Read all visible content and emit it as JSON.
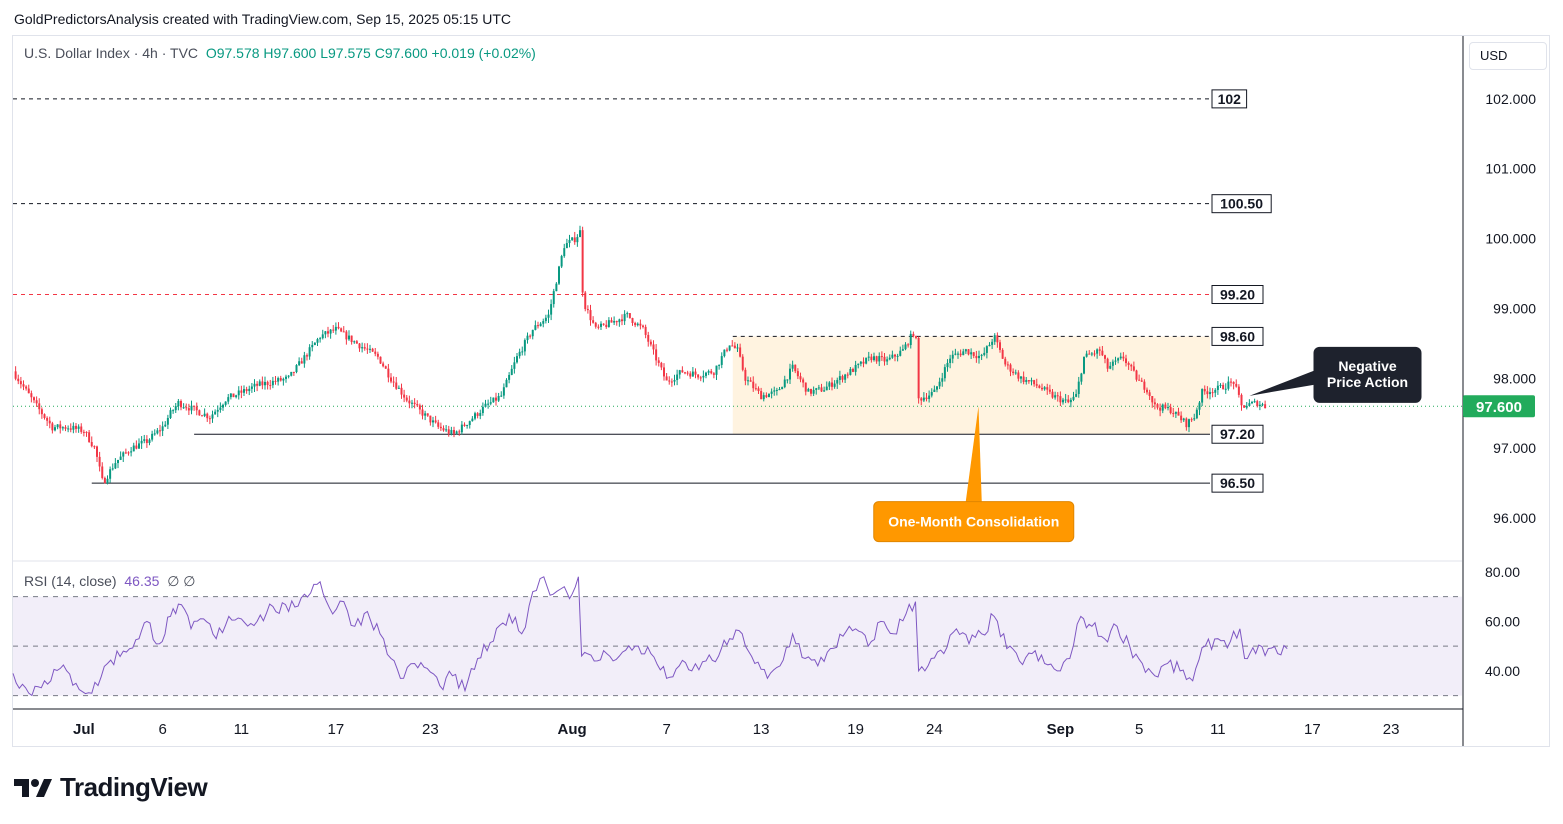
{
  "attribution": "GoldPredictorsAnalysis created with TradingView.com, Sep 15, 2025 05:15 UTC",
  "symbol": {
    "name": "U.S. Dollar Index · 4h · TVC",
    "ohlc": "O97.578  H97.600  L97.575  C97.600  +0.019 (+0.02%)"
  },
  "currency": "USD",
  "brand": "TradingView",
  "colors": {
    "up": "#089981",
    "down": "#f23645",
    "rsi": "#7e57c2",
    "last_price": "#22ab5c",
    "callout_orange": "#ff9800",
    "callout_dark": "#1e222d"
  },
  "chart_data": [
    {
      "type": "candlestick",
      "timeframe": "4h",
      "ylim": [
        95.4,
        102.9
      ],
      "price_axis_ticks": [
        "102.000",
        "101.000",
        "100.000",
        "99.000",
        "98.000",
        "97.000",
        "96.000"
      ],
      "price_axis_values": [
        102,
        101,
        100,
        99,
        98,
        97,
        96
      ],
      "time_axis_ticks": [
        "Jul",
        "6",
        "11",
        "17",
        "23",
        "Aug",
        "7",
        "13",
        "19",
        "24",
        "Sep",
        "5",
        "11",
        "17",
        "23"
      ],
      "time_axis_days": [
        0,
        5,
        10,
        16,
        22,
        31,
        37,
        43,
        49,
        54,
        62,
        67,
        72,
        78,
        83
      ],
      "x_range_days": [
        -4.5,
        87.5
      ],
      "last_price": {
        "value": 97.6,
        "label": "97.600"
      },
      "close_path": [
        {
          "day": -4.5,
          "close": 98.1
        },
        {
          "day": -3.0,
          "close": 97.6
        },
        {
          "day": -2.0,
          "close": 97.3
        },
        {
          "day": -1.0,
          "close": 97.3
        },
        {
          "day": 0.0,
          "close": 97.25
        },
        {
          "day": 0.7,
          "close": 97.0
        },
        {
          "day": 1.2,
          "close": 96.5
        },
        {
          "day": 2.0,
          "close": 96.8
        },
        {
          "day": 3.0,
          "close": 97.0
        },
        {
          "day": 4.0,
          "close": 97.1
        },
        {
          "day": 5.0,
          "close": 97.3
        },
        {
          "day": 5.5,
          "close": 97.5
        },
        {
          "day": 6.0,
          "close": 97.65
        },
        {
          "day": 7.0,
          "close": 97.55
        },
        {
          "day": 8.0,
          "close": 97.45
        },
        {
          "day": 9.0,
          "close": 97.7
        },
        {
          "day": 10.0,
          "close": 97.8
        },
        {
          "day": 11.0,
          "close": 97.9
        },
        {
          "day": 12.0,
          "close": 97.95
        },
        {
          "day": 13.0,
          "close": 98.0
        },
        {
          "day": 14.0,
          "close": 98.3
        },
        {
          "day": 15.0,
          "close": 98.6
        },
        {
          "day": 16.0,
          "close": 98.7
        },
        {
          "day": 17.0,
          "close": 98.55
        },
        {
          "day": 18.0,
          "close": 98.4
        },
        {
          "day": 18.7,
          "close": 98.3
        },
        {
          "day": 19.5,
          "close": 98.0
        },
        {
          "day": 20.5,
          "close": 97.7
        },
        {
          "day": 21.5,
          "close": 97.5
        },
        {
          "day": 22.5,
          "close": 97.3
        },
        {
          "day": 23.5,
          "close": 97.2
        },
        {
          "day": 24.5,
          "close": 97.4
        },
        {
          "day": 25.5,
          "close": 97.6
        },
        {
          "day": 26.5,
          "close": 97.75
        },
        {
          "day": 27.5,
          "close": 98.3
        },
        {
          "day": 28.5,
          "close": 98.7
        },
        {
          "day": 29.5,
          "close": 98.9
        },
        {
          "day": 30.0,
          "close": 99.4
        },
        {
          "day": 30.5,
          "close": 99.9
        },
        {
          "day": 31.2,
          "close": 100.0
        },
        {
          "day": 31.5,
          "close": 100.1
        },
        {
          "day": 31.7,
          "close": 99.1
        },
        {
          "day": 32.5,
          "close": 98.7
        },
        {
          "day": 33.5,
          "close": 98.8
        },
        {
          "day": 34.5,
          "close": 98.9
        },
        {
          "day": 35.5,
          "close": 98.7
        },
        {
          "day": 36.5,
          "close": 98.2
        },
        {
          "day": 37.0,
          "close": 97.95
        },
        {
          "day": 38.0,
          "close": 98.1
        },
        {
          "day": 39.0,
          "close": 98.05
        },
        {
          "day": 40.0,
          "close": 98.1
        },
        {
          "day": 41.0,
          "close": 98.5
        },
        {
          "day": 41.5,
          "close": 98.4
        },
        {
          "day": 42.0,
          "close": 98.0
        },
        {
          "day": 43.0,
          "close": 97.75
        },
        {
          "day": 44.0,
          "close": 97.8
        },
        {
          "day": 45.0,
          "close": 98.15
        },
        {
          "day": 46.0,
          "close": 97.8
        },
        {
          "day": 47.0,
          "close": 97.85
        },
        {
          "day": 48.0,
          "close": 98.0
        },
        {
          "day": 49.0,
          "close": 98.15
        },
        {
          "day": 50.0,
          "close": 98.3
        },
        {
          "day": 51.0,
          "close": 98.25
        },
        {
          "day": 52.0,
          "close": 98.4
        },
        {
          "day": 52.8,
          "close": 98.7
        },
        {
          "day": 53.0,
          "close": 97.7
        },
        {
          "day": 54.0,
          "close": 97.8
        },
        {
          "day": 55.0,
          "close": 98.3
        },
        {
          "day": 56.0,
          "close": 98.4
        },
        {
          "day": 57.0,
          "close": 98.3
        },
        {
          "day": 57.8,
          "close": 98.6
        },
        {
          "day": 58.5,
          "close": 98.2
        },
        {
          "day": 59.5,
          "close": 98.0
        },
        {
          "day": 60.5,
          "close": 97.9
        },
        {
          "day": 61.5,
          "close": 97.75
        },
        {
          "day": 62.5,
          "close": 97.65
        },
        {
          "day": 63.0,
          "close": 97.75
        },
        {
          "day": 63.5,
          "close": 98.3
        },
        {
          "day": 64.5,
          "close": 98.4
        },
        {
          "day": 65.0,
          "close": 98.15
        },
        {
          "day": 66.0,
          "close": 98.3
        },
        {
          "day": 67.0,
          "close": 97.95
        },
        {
          "day": 67.5,
          "close": 97.85
        },
        {
          "day": 68.0,
          "close": 97.6
        },
        {
          "day": 69.0,
          "close": 97.55
        },
        {
          "day": 70.0,
          "close": 97.35
        },
        {
          "day": 70.5,
          "close": 97.45
        },
        {
          "day": 71.0,
          "close": 97.8
        },
        {
          "day": 72.0,
          "close": 97.85
        },
        {
          "day": 73.0,
          "close": 97.95
        },
        {
          "day": 73.5,
          "close": 97.6
        },
        {
          "day": 74.5,
          "close": 97.65
        },
        {
          "day": 75.0,
          "close": 97.6
        }
      ],
      "horizontal_levels": [
        {
          "label": "102",
          "value": 102.0,
          "style": "dashed",
          "color": "#131722",
          "start_day": -4.5,
          "end_day": 71.5
        },
        {
          "label": "100.50",
          "value": 100.5,
          "style": "dashed",
          "color": "#131722",
          "start_day": -4.5,
          "end_day": 71.5
        },
        {
          "label": "99.20",
          "value": 99.2,
          "style": "dashed",
          "color": "#f23645",
          "start_day": -4.5,
          "end_day": 71.5
        },
        {
          "label": "98.60",
          "value": 98.6,
          "style": "dashed",
          "color": "#131722",
          "start_day": 41.2,
          "end_day": 71.5
        },
        {
          "label": "97.20",
          "value": 97.2,
          "style": "solid",
          "color": "#131722",
          "start_day": 7.0,
          "end_day": 71.5
        },
        {
          "label": "96.50",
          "value": 96.5,
          "style": "solid",
          "color": "#131722",
          "start_day": 0.5,
          "end_day": 71.5
        }
      ],
      "consolidation_zone": {
        "start_day": 41.2,
        "end_day": 71.5,
        "top": 98.6,
        "bottom": 97.2,
        "color": "#fff3e0"
      },
      "annotations": [
        {
          "text": "One-Month Consolidation",
          "style": "orange",
          "day": 56.5,
          "value": 95.95,
          "arrow_day": 56.8,
          "arrow_value": 97.6
        },
        {
          "text": "Negative\nPrice Action",
          "style": "dark",
          "day": 81.5,
          "value": 98.05,
          "arrow_day": 74.0,
          "arrow_value": 97.75
        }
      ]
    },
    {
      "type": "line",
      "title": "RSI (14, close)",
      "value_label": "46.35",
      "symbols": "∅ ∅",
      "ylim": [
        25,
        84
      ],
      "bands": [
        70,
        50,
        30
      ],
      "axis_ticks": [
        "80.00",
        "60.00",
        "40.00"
      ],
      "axis_values": [
        80,
        60,
        40
      ],
      "series": [
        {
          "values": [
            {
              "day": -4.5,
              "rsi": 39
            },
            {
              "day": -3.5,
              "rsi": 31
            },
            {
              "day": -2.5,
              "rsi": 36
            },
            {
              "day": -1.5,
              "rsi": 41
            },
            {
              "day": -0.5,
              "rsi": 35
            },
            {
              "day": 0.5,
              "rsi": 31
            },
            {
              "day": 1.5,
              "rsi": 43
            },
            {
              "day": 2.5,
              "rsi": 48
            },
            {
              "day": 3.5,
              "rsi": 53
            },
            {
              "day": 4.0,
              "rsi": 60
            },
            {
              "day": 4.8,
              "rsi": 51
            },
            {
              "day": 5.5,
              "rsi": 62
            },
            {
              "day": 6.0,
              "rsi": 67
            },
            {
              "day": 6.8,
              "rsi": 57
            },
            {
              "day": 7.6,
              "rsi": 61
            },
            {
              "day": 8.4,
              "rsi": 53
            },
            {
              "day": 9.2,
              "rsi": 62
            },
            {
              "day": 10.0,
              "rsi": 61
            },
            {
              "day": 11.0,
              "rsi": 60
            },
            {
              "day": 12.0,
              "rsi": 66
            },
            {
              "day": 13.0,
              "rsi": 64
            },
            {
              "day": 14.0,
              "rsi": 71
            },
            {
              "day": 15.0,
              "rsi": 76
            },
            {
              "day": 15.8,
              "rsi": 63
            },
            {
              "day": 16.5,
              "rsi": 68
            },
            {
              "day": 17.2,
              "rsi": 58
            },
            {
              "day": 18.0,
              "rsi": 64
            },
            {
              "day": 18.8,
              "rsi": 55
            },
            {
              "day": 19.5,
              "rsi": 45
            },
            {
              "day": 20.3,
              "rsi": 37
            },
            {
              "day": 21.0,
              "rsi": 43
            },
            {
              "day": 21.8,
              "rsi": 41
            },
            {
              "day": 22.6,
              "rsi": 34
            },
            {
              "day": 23.4,
              "rsi": 38
            },
            {
              "day": 24.2,
              "rsi": 32
            },
            {
              "day": 25.0,
              "rsi": 45
            },
            {
              "day": 26.0,
              "rsi": 52
            },
            {
              "day": 27.0,
              "rsi": 63
            },
            {
              "day": 27.8,
              "rsi": 55
            },
            {
              "day": 28.5,
              "rsi": 72
            },
            {
              "day": 29.2,
              "rsi": 78
            },
            {
              "day": 29.8,
              "rsi": 71
            },
            {
              "day": 30.5,
              "rsi": 74
            },
            {
              "day": 31.0,
              "rsi": 71
            },
            {
              "day": 31.4,
              "rsi": 78
            },
            {
              "day": 31.6,
              "rsi": 46
            },
            {
              "day": 32.4,
              "rsi": 44
            },
            {
              "day": 33.2,
              "rsi": 47
            },
            {
              "day": 34.0,
              "rsi": 46
            },
            {
              "day": 35.0,
              "rsi": 50
            },
            {
              "day": 36.0,
              "rsi": 47
            },
            {
              "day": 37.0,
              "rsi": 37
            },
            {
              "day": 37.8,
              "rsi": 42
            },
            {
              "day": 38.6,
              "rsi": 40
            },
            {
              "day": 39.5,
              "rsi": 44
            },
            {
              "day": 40.3,
              "rsi": 46
            },
            {
              "day": 41.0,
              "rsi": 53
            },
            {
              "day": 41.8,
              "rsi": 55
            },
            {
              "day": 42.6,
              "rsi": 43
            },
            {
              "day": 43.4,
              "rsi": 37
            },
            {
              "day": 44.2,
              "rsi": 42
            },
            {
              "day": 45.0,
              "rsi": 55
            },
            {
              "day": 45.8,
              "rsi": 45
            },
            {
              "day": 46.6,
              "rsi": 42
            },
            {
              "day": 47.4,
              "rsi": 49
            },
            {
              "day": 48.2,
              "rsi": 54
            },
            {
              "day": 49.0,
              "rsi": 57
            },
            {
              "day": 49.8,
              "rsi": 50
            },
            {
              "day": 50.6,
              "rsi": 60
            },
            {
              "day": 51.4,
              "rsi": 55
            },
            {
              "day": 52.2,
              "rsi": 63
            },
            {
              "day": 52.8,
              "rsi": 68
            },
            {
              "day": 53.0,
              "rsi": 40
            },
            {
              "day": 53.8,
              "rsi": 45
            },
            {
              "day": 54.6,
              "rsi": 47
            },
            {
              "day": 55.4,
              "rsi": 57
            },
            {
              "day": 56.2,
              "rsi": 51
            },
            {
              "day": 57.0,
              "rsi": 55
            },
            {
              "day": 57.8,
              "rsi": 62
            },
            {
              "day": 58.6,
              "rsi": 49
            },
            {
              "day": 59.4,
              "rsi": 44
            },
            {
              "day": 60.2,
              "rsi": 47
            },
            {
              "day": 61.0,
              "rsi": 43
            },
            {
              "day": 61.8,
              "rsi": 40
            },
            {
              "day": 62.6,
              "rsi": 45
            },
            {
              "day": 63.3,
              "rsi": 62
            },
            {
              "day": 64.0,
              "rsi": 58
            },
            {
              "day": 64.8,
              "rsi": 53
            },
            {
              "day": 65.6,
              "rsi": 58
            },
            {
              "day": 66.4,
              "rsi": 50
            },
            {
              "day": 67.2,
              "rsi": 43
            },
            {
              "day": 68.0,
              "rsi": 38
            },
            {
              "day": 68.8,
              "rsi": 43
            },
            {
              "day": 69.6,
              "rsi": 40
            },
            {
              "day": 70.4,
              "rsi": 36
            },
            {
              "day": 71.2,
              "rsi": 50
            },
            {
              "day": 72.0,
              "rsi": 53
            },
            {
              "day": 72.8,
              "rsi": 52
            },
            {
              "day": 73.4,
              "rsi": 57
            },
            {
              "day": 73.7,
              "rsi": 45
            },
            {
              "day": 74.4,
              "rsi": 47
            },
            {
              "day": 75.2,
              "rsi": 49
            },
            {
              "day": 75.8,
              "rsi": 47
            },
            {
              "day": 76.4,
              "rsi": 49
            }
          ]
        }
      ]
    }
  ]
}
